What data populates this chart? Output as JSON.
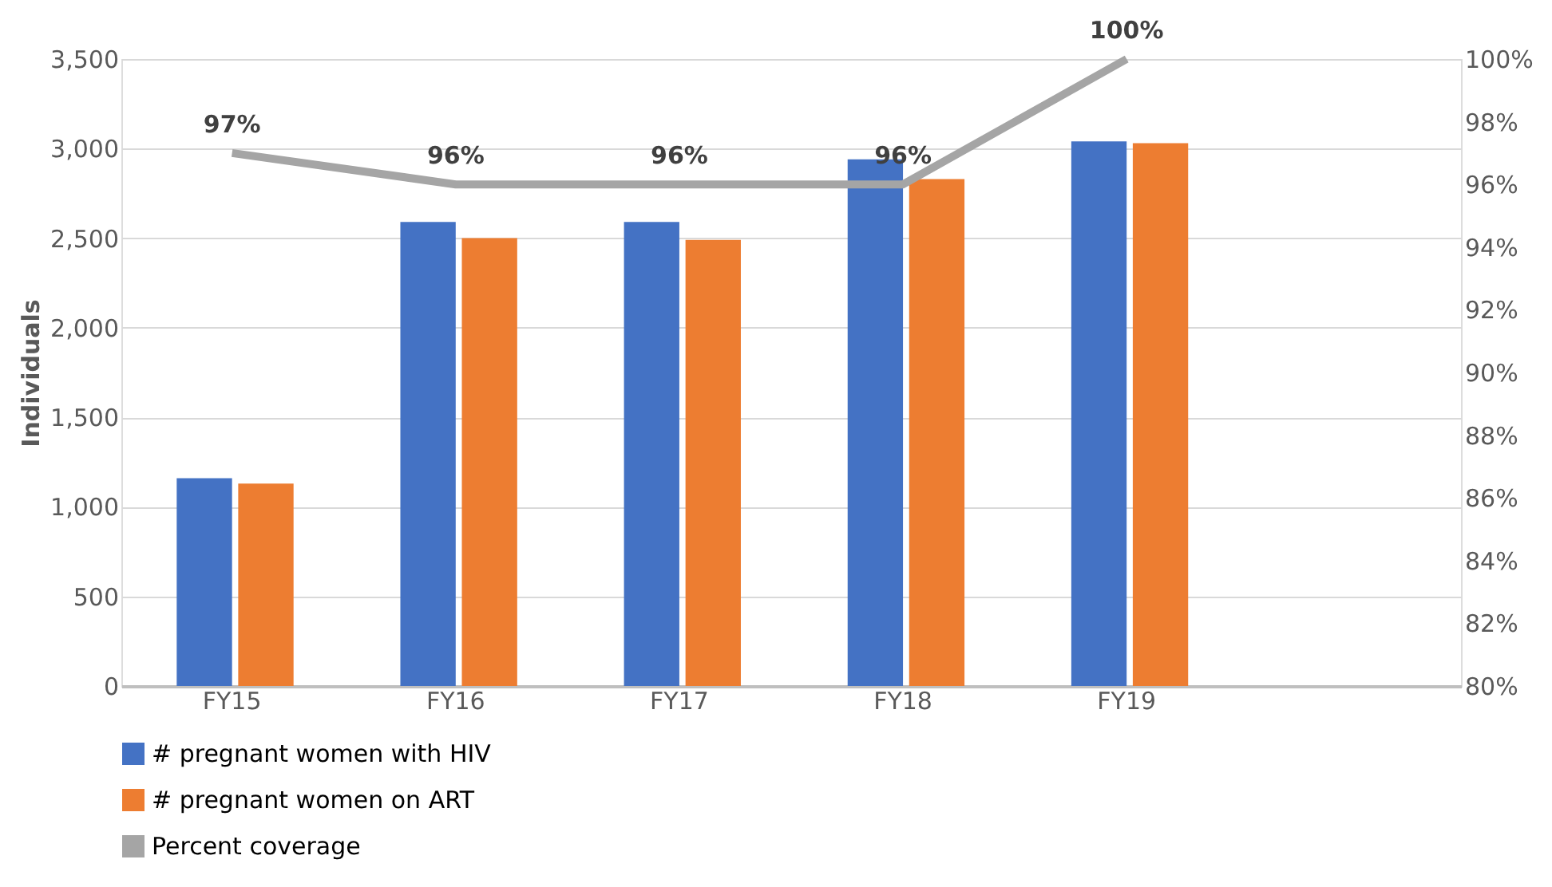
{
  "chart_data": {
    "type": "bar",
    "ylabel": "Individuals",
    "categories": [
      "FY15",
      "FY16",
      "FY17",
      "FY18",
      "FY19",
      null
    ],
    "series": [
      {
        "name": "# pregnant women with HIV",
        "color": "#4472c4",
        "values": [
          1160,
          2590,
          2590,
          2940,
          3040,
          null
        ]
      },
      {
        "name": "# pregnant women on ART",
        "color": "#ed7d31",
        "values": [
          1130,
          2500,
          2490,
          2830,
          3030,
          null
        ]
      },
      {
        "name": "Percent coverage",
        "type": "line",
        "axis": "y2",
        "color": "#a5a5a5",
        "values": [
          97,
          96,
          96,
          96,
          100,
          null
        ],
        "value_labels": [
          "97%",
          "96%",
          "96%",
          "96%",
          "100%",
          null
        ]
      }
    ],
    "ylim": [
      0,
      3500
    ],
    "yticks": [
      0,
      {
        "value": 500,
        "label": "500"
      },
      {
        "value": 1000,
        "label": "1,000"
      },
      {
        "value": 1500,
        "label": "1,500"
      },
      {
        "value": 2000,
        "label": "2,000"
      },
      {
        "value": 2500,
        "label": "2,500"
      },
      {
        "value": 3000,
        "label": "3,000"
      },
      {
        "value": 3500,
        "label": "3,500"
      }
    ],
    "y2lim": [
      80,
      100
    ],
    "y2ticks": [
      {
        "value": 80,
        "label": "80%"
      },
      {
        "value": 82,
        "label": "82%"
      },
      {
        "value": 84,
        "label": "84%"
      },
      {
        "value": 86,
        "label": "86%"
      },
      {
        "value": 88,
        "label": "88%"
      },
      {
        "value": 90,
        "label": "90%"
      },
      {
        "value": 92,
        "label": "92%"
      },
      {
        "value": 94,
        "label": "94%"
      },
      {
        "value": 96,
        "label": "96%"
      },
      {
        "value": 98,
        "label": "98%"
      },
      {
        "value": 100,
        "label": "100%"
      }
    ],
    "grid": "y",
    "legend": "bottom"
  }
}
